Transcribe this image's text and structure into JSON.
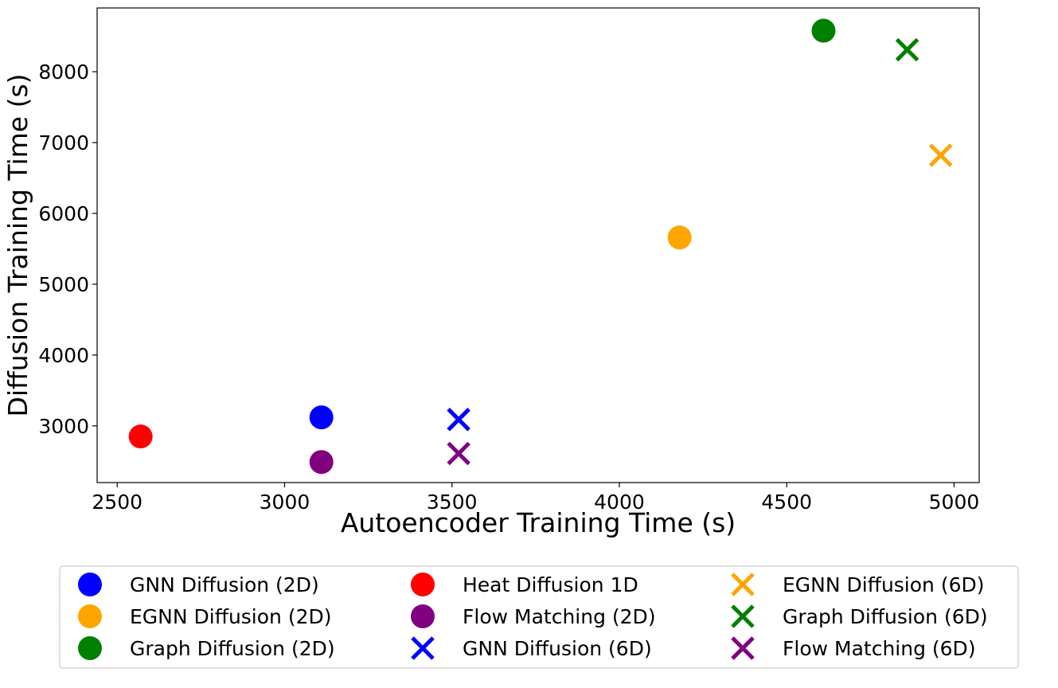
{
  "chart_data": {
    "type": "scatter",
    "title": "",
    "xlabel": "Autoencoder Training Time (s)",
    "ylabel": "Diffusion Training Time (s)",
    "xlim": [
      2440,
      5075
    ],
    "ylim": [
      2200,
      8900
    ],
    "xticks": [
      2500,
      3000,
      3500,
      4000,
      4500,
      5000
    ],
    "yticks": [
      3000,
      4000,
      5000,
      6000,
      7000,
      8000
    ],
    "grid": false,
    "legend_position": "bottom-center, below plot, 3 columns",
    "series": [
      {
        "name": "GNN Diffusion (2D)",
        "marker": "circle",
        "color": "#0000ff",
        "points": [
          {
            "x": 3110,
            "y": 3120
          }
        ]
      },
      {
        "name": "EGNN Diffusion (2D)",
        "marker": "circle",
        "color": "#ffa500",
        "points": [
          {
            "x": 4180,
            "y": 5660
          }
        ]
      },
      {
        "name": "Graph Diffusion (2D)",
        "marker": "circle",
        "color": "#008000",
        "points": [
          {
            "x": 4610,
            "y": 8580
          }
        ]
      },
      {
        "name": "Heat Diffusion 1D",
        "marker": "circle",
        "color": "#ff0000",
        "points": [
          {
            "x": 2570,
            "y": 2850
          }
        ]
      },
      {
        "name": "Flow Matching (2D)",
        "marker": "circle",
        "color": "#800080",
        "points": [
          {
            "x": 3110,
            "y": 2490
          }
        ]
      },
      {
        "name": "GNN Diffusion (6D)",
        "marker": "x",
        "color": "#0000ff",
        "points": [
          {
            "x": 3520,
            "y": 3090
          }
        ]
      },
      {
        "name": "EGNN Diffusion (6D)",
        "marker": "x",
        "color": "#ffa500",
        "points": [
          {
            "x": 4960,
            "y": 6820
          }
        ]
      },
      {
        "name": "Graph Diffusion (6D)",
        "marker": "x",
        "color": "#008000",
        "points": [
          {
            "x": 4860,
            "y": 8310
          }
        ]
      },
      {
        "name": "Flow Matching (6D)",
        "marker": "x",
        "color": "#800080",
        "points": [
          {
            "x": 3520,
            "y": 2610
          }
        ]
      }
    ]
  }
}
